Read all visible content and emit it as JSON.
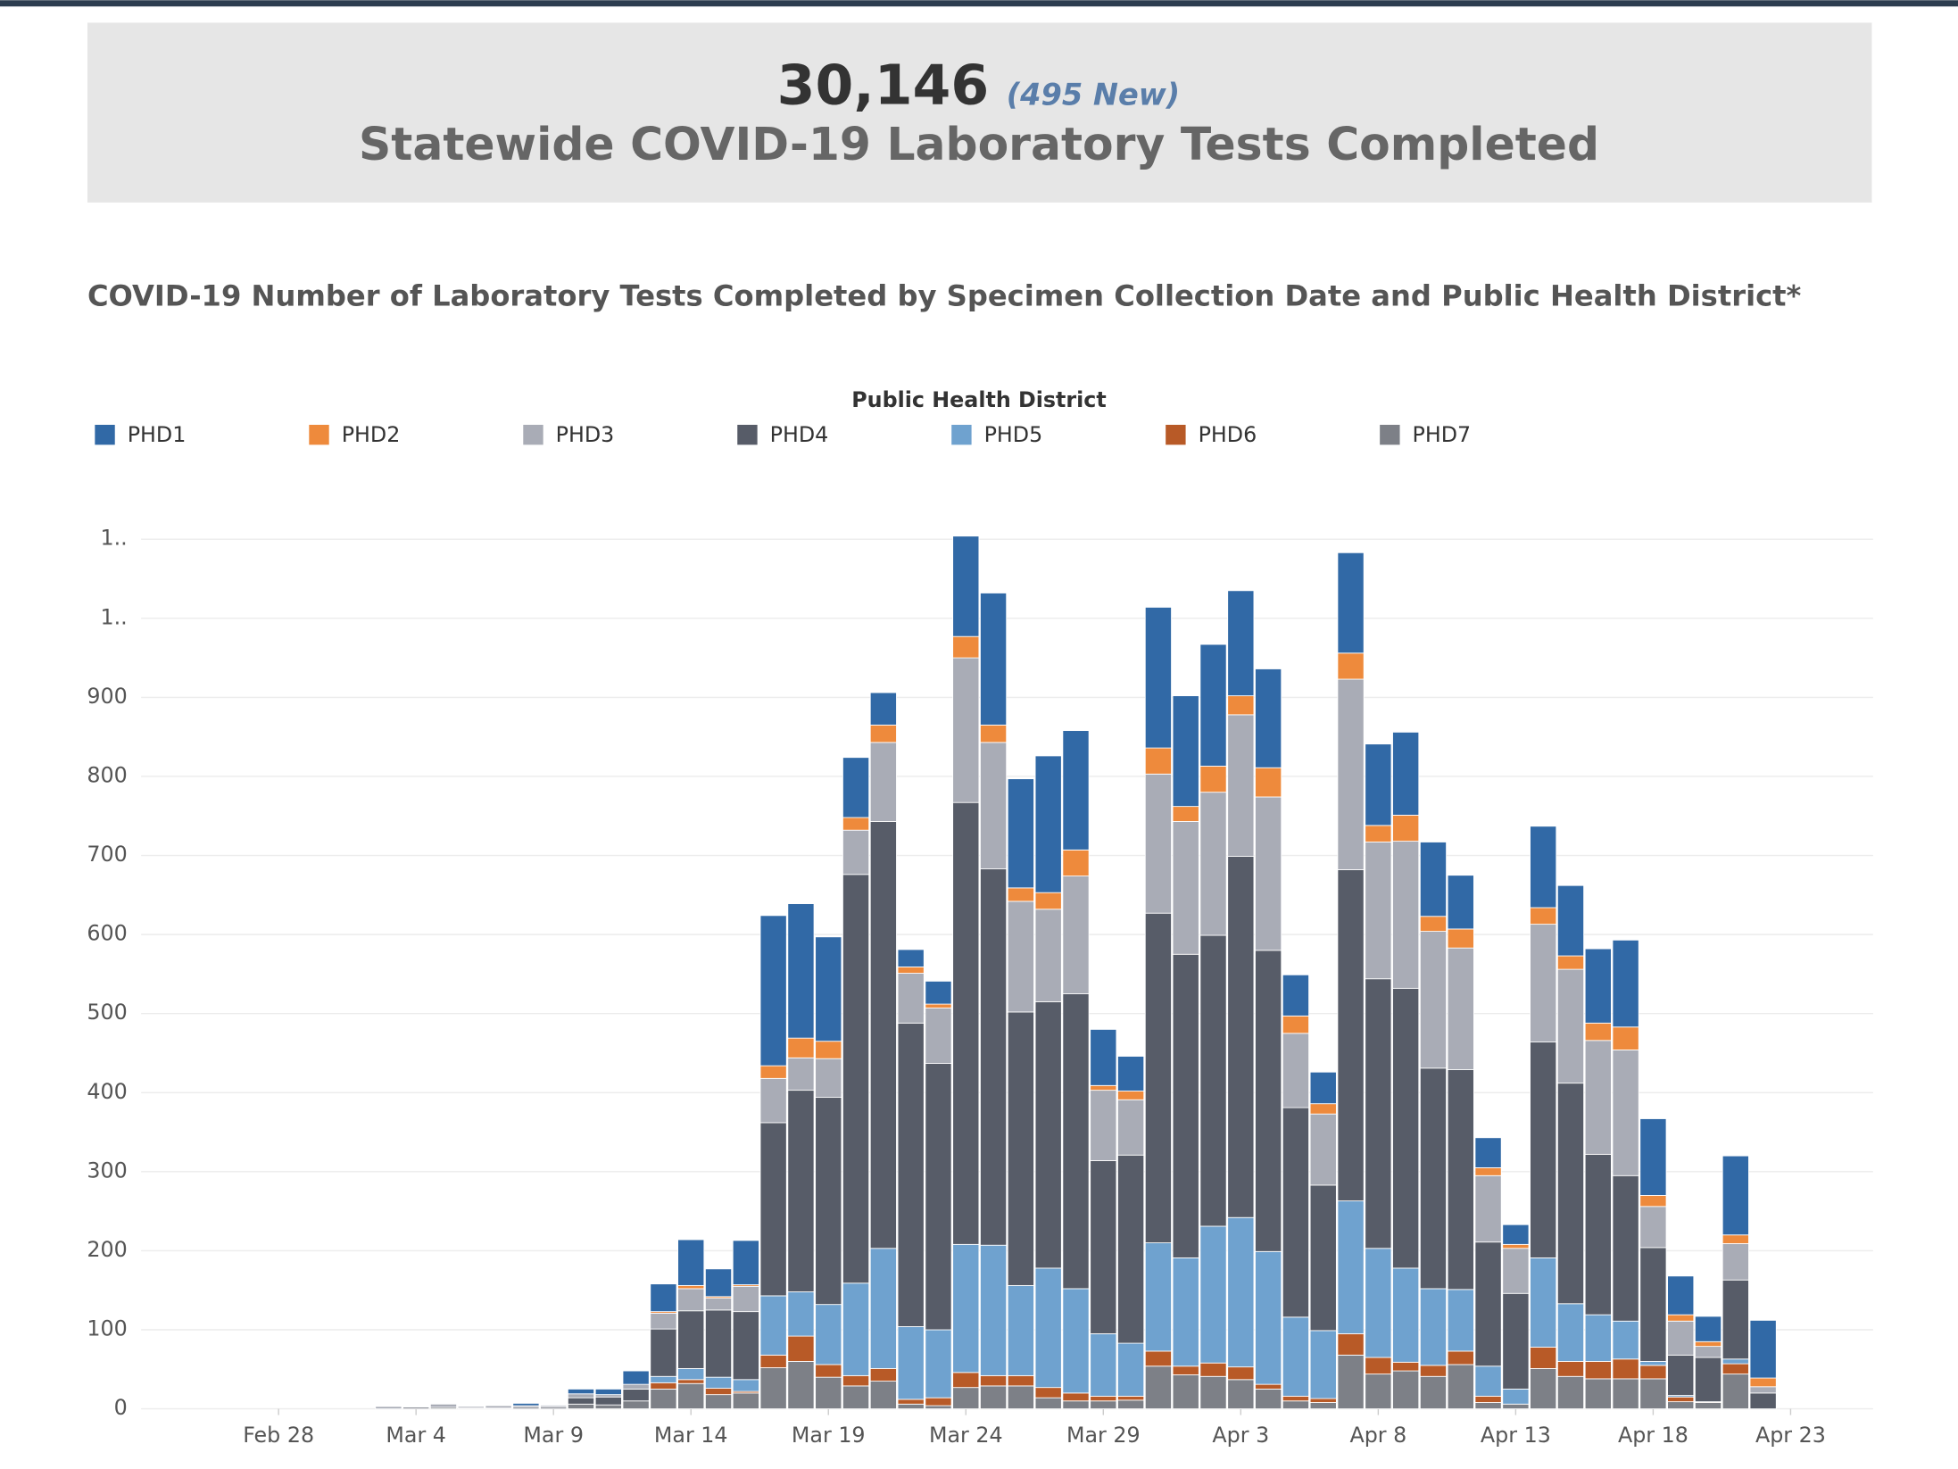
{
  "header": {
    "total": "30,146",
    "new": "(495 New)",
    "title": "Statewide COVID-19 Laboratory Tests Completed"
  },
  "chart_data": {
    "type": "stacked-bar",
    "title": "COVID-19 Number of Laboratory Tests Completed by Specimen Collection Date and Public Health District*",
    "legend_title": "Public Health District",
    "x": [
      "Mar 3",
      "Mar 4",
      "Mar 5",
      "Mar 6",
      "Mar 7",
      "Mar 8",
      "Mar 9",
      "Mar 10",
      "Mar 11",
      "Mar 12",
      "Mar 13",
      "Mar 14",
      "Mar 15",
      "Mar 16",
      "Mar 17",
      "Mar 18",
      "Mar 19",
      "Mar 20",
      "Mar 21",
      "Mar 22",
      "Mar 23",
      "Mar 24",
      "Mar 25",
      "Mar 26",
      "Mar 27",
      "Mar 28",
      "Mar 29",
      "Mar 30",
      "Mar 31",
      "Apr 1",
      "Apr 2",
      "Apr 3",
      "Apr 4",
      "Apr 5",
      "Apr 6",
      "Apr 7",
      "Apr 8",
      "Apr 9",
      "Apr 10",
      "Apr 11",
      "Apr 12",
      "Apr 13",
      "Apr 14",
      "Apr 15",
      "Apr 16",
      "Apr 17",
      "Apr 18",
      "Apr 19",
      "Apr 20",
      "Apr 21",
      "Apr 22"
    ],
    "series": [
      {
        "name": "PHD1",
        "color": "#3169a6",
        "values": [
          0,
          0,
          0,
          0,
          0,
          3,
          1,
          6,
          7,
          17,
          35,
          58,
          35,
          56,
          190,
          170,
          132,
          76,
          41,
          22,
          29,
          127,
          167,
          138,
          173,
          151,
          71,
          44,
          178,
          140,
          154,
          133,
          125,
          52,
          40,
          127,
          103,
          105,
          94,
          68,
          38,
          25,
          103,
          89,
          94,
          110,
          97,
          49,
          32,
          100,
          73
        ]
      },
      {
        "name": "PHD2",
        "color": "#ee8a3c",
        "values": [
          0,
          0,
          0,
          0,
          0,
          0,
          0,
          0,
          0,
          0,
          2,
          4,
          2,
          2,
          16,
          25,
          22,
          16,
          22,
          8,
          5,
          27,
          22,
          17,
          21,
          33,
          6,
          11,
          33,
          19,
          33,
          24,
          37,
          22,
          13,
          33,
          21,
          33,
          19,
          24,
          10,
          5,
          21,
          17,
          22,
          29,
          14,
          8,
          6,
          11,
          11
        ]
      },
      {
        "name": "PHD3",
        "color": "#a9acb6",
        "values": [
          3,
          1,
          4,
          2,
          3,
          2,
          2,
          5,
          3,
          6,
          20,
          28,
          15,
          32,
          56,
          41,
          49,
          56,
          100,
          63,
          70,
          183,
          160,
          140,
          117,
          149,
          89,
          70,
          176,
          168,
          181,
          179,
          194,
          94,
          90,
          241,
          173,
          186,
          173,
          154,
          84,
          57,
          149,
          144,
          144,
          159,
          52,
          43,
          14,
          46,
          8
        ]
      },
      {
        "name": "PHD4",
        "color": "#575c68",
        "values": [
          0,
          2,
          0,
          1,
          1,
          2,
          2,
          8,
          10,
          15,
          60,
          73,
          85,
          86,
          219,
          255,
          262,
          517,
          540,
          384,
          337,
          559,
          476,
          346,
          337,
          373,
          219,
          238,
          417,
          384,
          368,
          457,
          381,
          265,
          184,
          419,
          341,
          354,
          279,
          278,
          157,
          121,
          273,
          279,
          203,
          184,
          144,
          51,
          56,
          100,
          20
        ]
      },
      {
        "name": "PHD5",
        "color": "#6fa2cf",
        "values": [
          0,
          0,
          0,
          0,
          0,
          0,
          0,
          0,
          0,
          0,
          8,
          14,
          14,
          15,
          75,
          56,
          76,
          117,
          152,
          92,
          86,
          162,
          165,
          114,
          151,
          132,
          79,
          67,
          137,
          137,
          173,
          189,
          168,
          100,
          86,
          168,
          138,
          119,
          97,
          78,
          38,
          19,
          113,
          73,
          59,
          48,
          5,
          2,
          0,
          6,
          0
        ]
      },
      {
        "name": "PHD6",
        "color": "#b85a27",
        "values": [
          0,
          0,
          0,
          0,
          0,
          0,
          0,
          0,
          0,
          0,
          8,
          5,
          8,
          2,
          16,
          32,
          16,
          13,
          16,
          6,
          10,
          19,
          13,
          13,
          13,
          10,
          6,
          5,
          19,
          11,
          17,
          16,
          6,
          6,
          5,
          27,
          21,
          11,
          14,
          17,
          8,
          0,
          27,
          19,
          22,
          25,
          17,
          6,
          1,
          13,
          0
        ]
      },
      {
        "name": "PHD7",
        "color": "#7d8087",
        "values": [
          0,
          0,
          2,
          0,
          0,
          0,
          0,
          6,
          5,
          10,
          25,
          32,
          18,
          20,
          52,
          60,
          40,
          29,
          35,
          6,
          4,
          27,
          29,
          29,
          14,
          10,
          10,
          11,
          54,
          43,
          41,
          37,
          25,
          10,
          8,
          68,
          44,
          48,
          41,
          56,
          8,
          6,
          51,
          41,
          38,
          38,
          38,
          9,
          8,
          44,
          0
        ]
      }
    ],
    "xlim": [
      "Feb 23",
      "Apr 26"
    ],
    "xticks": [
      "Feb 28",
      "Mar 4",
      "Mar 9",
      "Mar 14",
      "Mar 19",
      "Mar 24",
      "Mar 29",
      "Apr 3",
      "Apr 8",
      "Apr 13",
      "Apr 18",
      "Apr 23"
    ],
    "ylim": [
      0,
      1150
    ],
    "yticks": [
      0,
      100,
      200,
      300,
      400,
      500,
      600,
      700,
      800,
      900,
      {
        "value": 1000,
        "label": "1.."
      },
      {
        "value": 1100,
        "label": "1.."
      }
    ],
    "grid": true
  }
}
